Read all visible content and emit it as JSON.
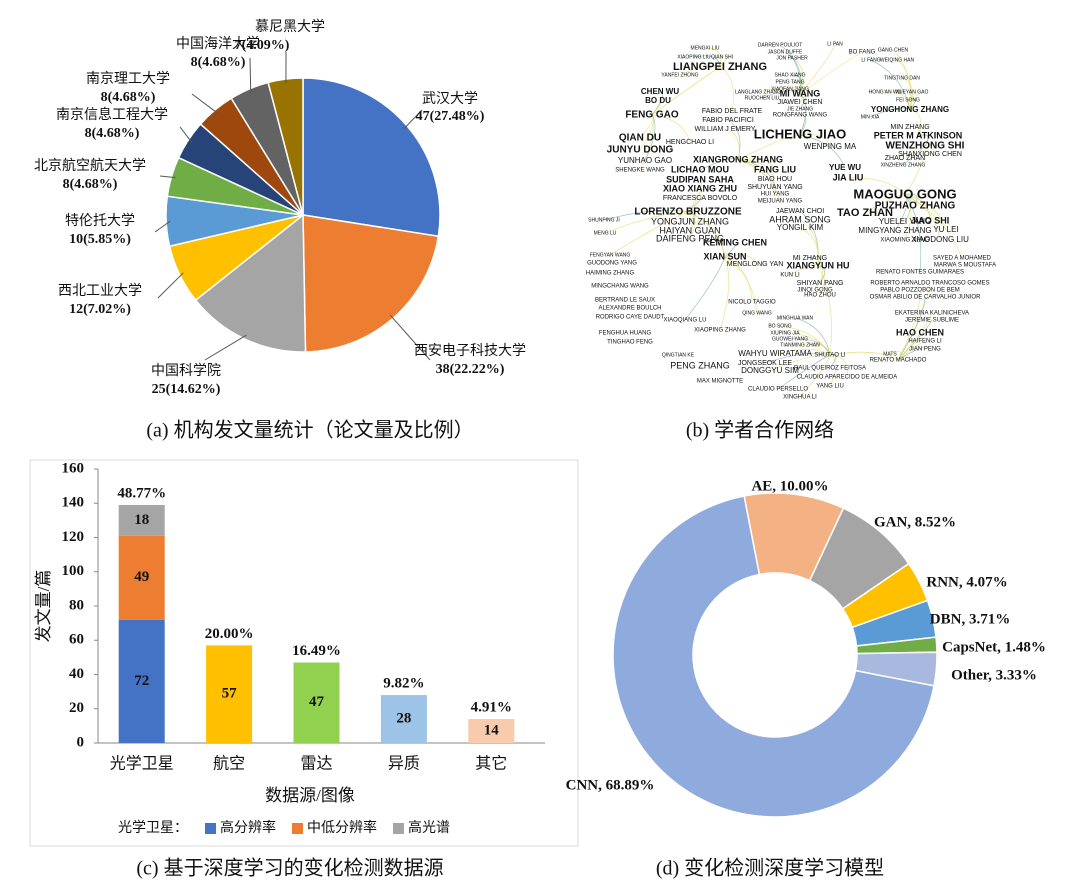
{
  "chart_data": [
    {
      "type": "pie",
      "caption": "(a)  机构发文量统计（论文量及比例）",
      "categories": [
        "武汉大学",
        "西安电子科技大学",
        "中国科学院",
        "西北工业大学",
        "特伦托大学",
        "北京航空航天大学",
        "南京信息工程大学",
        "南京理工大学",
        "中国海洋大学",
        "慕尼黑大学"
      ],
      "values": [
        47,
        38,
        25,
        12,
        10,
        8,
        8,
        8,
        8,
        7
      ],
      "value_labels": [
        "47(27.48%)",
        "38(22.22%)",
        "25(14.62%)",
        "12(7.02%)",
        "10(5.85%)",
        "8(4.68%)",
        "8(4.68%)",
        "8(4.68%)",
        "8(4.68%)",
        "7(4.09%)"
      ],
      "colors": [
        "#4472c4",
        "#ed7d31",
        "#a5a5a5",
        "#ffc000",
        "#5b9bd5",
        "#70ad47",
        "#264478",
        "#9e480e",
        "#636363",
        "#997300"
      ]
    },
    {
      "type": "network",
      "caption": "(b)  学者合作网络",
      "nodes": [
        "DARREN POULIOT",
        "LI PAN",
        "MENGXI LIU",
        "JASON DUFFE",
        "BO FANG",
        "GANG CHEN",
        "XIAOPING LIU",
        "QIAN SHI",
        "JON PASHER",
        "LI FANG",
        "WEIQING HAN",
        "LIANGPEI ZHANG",
        "SHAO XIANG",
        "PENG TANG",
        "XIAOFAN JIANG",
        "RONGFANG WANG",
        "TINGTING DAN",
        "XUEYAN GAO",
        "FEI SONG",
        "YANFEI ZHONG",
        "FENG GAO",
        "CHEN WU",
        "BO DU",
        "FABIO DEL FRATE",
        "FABIO PACIFICI",
        "WILLIAM J EMERY",
        "LANGLANG ZHANG",
        "RUOCHEN LIU",
        "MI WANG",
        "JIAWEI CHEN",
        "JIE ZHANG",
        "YONGHONG ZHANG",
        "HONG'AN WU",
        "MIN XIA",
        "MIN ZHANG",
        "PETER M ATKINSON",
        "WENZHONG SHI",
        "SHANXIONG CHEN",
        "ZHAO ZHAN",
        "XINZHENG ZHANG",
        "QIAN DU",
        "JUNYU DONG",
        "YUNHAO GAO",
        "SHENGKE WANG",
        "HENGCHAO LI",
        "LICHENG JIAO",
        "WENPING MA",
        "XIANGRONG ZHANG",
        "LICHAO MOU",
        "SUDIPAN SAHA",
        "XIAO XIANG ZHU",
        "FRANCESCA BOVOLO",
        "FANG LIU",
        "BIAO HOU",
        "SHUYUAN YANG",
        "HUI YANG",
        "MEIJUAN YANG",
        "YUE WU",
        "JIA LIU",
        "MAOGUO GONG",
        "PUZHAO ZHANG",
        "TAO ZHAN",
        "JIAO SHI",
        "YUELEI YANG",
        "YU LEI",
        "XIAODONG LIU",
        "MINGYANG ZHANG",
        "XIAOMING JIANG",
        "LORENZO BRUZZONE",
        "YONGJUN ZHANG",
        "HAIYAN GUAN",
        "DAIFENG PENG",
        "JAEWAN CHOI",
        "AHRAM SONG",
        "YONGIL KIM",
        "KEMING CHEN",
        "XIAN SUN",
        "MENGLONG YAN",
        "MI ZHANG",
        "XIANGYUN HU",
        "KUN LI",
        "SHIYAN PANG",
        "JINQI GONG",
        "HAO ZHOU",
        "RENATO FONTES GUIMARAES",
        "ROBERTO ARNALDO TRANCOSO GOMES",
        "PABLO POZZOBON DE BEM",
        "OSMAR ABILIO DE CARVALHO JUNIOR",
        "SAYED A MOHAMED",
        "MARWA S MOUSTAFA",
        "SHUNPING JI",
        "MENG LU",
        "FENGYAN WANG",
        "GUODONG YANG",
        "HAIMING ZHANG",
        "MINGCHANG WANG",
        "BERTRAND LE SAUX",
        "ALEXANDRE BOULCH",
        "RODRIGO CAYE DAUDT",
        "FENGHUA HUANG",
        "TINGHAO FENG",
        "NICOLO TAGGIO",
        "XIAOQIANG LU",
        "XIAOPING ZHANG",
        "QING WANG",
        "MINGHUA WAN",
        "BO SONG",
        "XIUPING JIA",
        "GUOWEI YANG",
        "TIANMING ZHAN",
        "EKATERINA KALINICHEVA",
        "JEREMIE SUBLIME",
        "HAO CHEN",
        "HAIFENG LI",
        "JIAN PENG",
        "MATS",
        "RENATO MACHADO",
        "QINGTIAN KE",
        "PENG ZHANG",
        "WAHYU WIRATAMA",
        "JONGSEOK LEE",
        "DONGGYU SIM",
        "SHUTAO LI",
        "RAUL QUEIROZ FEITOSA",
        "CLAUDIO APARECIDO DE ALMEIDA",
        "MAX MIGNOTTE",
        "CLAUDIO PERSELLO",
        "YANG LIU",
        "XINGHUA LI"
      ]
    },
    {
      "type": "bar",
      "caption": "(c)  基于深度学习的变化检测数据源",
      "ylabel": "发文量/篇",
      "xlabel": "数据源/图像",
      "categories": [
        "光学卫星",
        "航空",
        "雷达",
        "异质",
        "其它"
      ],
      "ylim": [
        0,
        160
      ],
      "yticks": [
        0,
        20,
        40,
        60,
        80,
        100,
        120,
        140,
        160
      ],
      "legend_title": "光学卫星：",
      "series": [
        {
          "name": "高分辨率",
          "color": "#4472c4",
          "values": [
            72,
            null,
            null,
            null,
            null
          ]
        },
        {
          "name": "中低分辨率",
          "color": "#ed7d31",
          "values": [
            49,
            null,
            null,
            null,
            null
          ]
        },
        {
          "name": "高光谱",
          "color": "#a5a5a5",
          "values": [
            18,
            null,
            null,
            null,
            null
          ]
        }
      ],
      "single": {
        "values": [
          null,
          57,
          47,
          28,
          14
        ],
        "colors": [
          null,
          "#ffc000",
          "#92d050",
          "#9dc3e6",
          "#f8cbad"
        ]
      },
      "total_labels": [
        "48.77%",
        "20.00%",
        "16.49%",
        "9.82%",
        "4.91%"
      ]
    },
    {
      "type": "donut",
      "caption": "(d)  变化检测深度学习模型",
      "categories": [
        "AE",
        "GAN",
        "RNN",
        "DBN",
        "CapsNet",
        "Other",
        "CNN"
      ],
      "values": [
        10.0,
        8.52,
        4.07,
        3.71,
        1.48,
        3.33,
        68.89
      ],
      "value_labels": [
        "AE, 10.00%",
        "GAN, 8.52%",
        "RNN, 4.07%",
        "DBN, 3.71%",
        "CapsNet, 1.48%",
        "Other, 3.33%",
        "CNN, 68.89%"
      ],
      "colors": [
        "#f4b183",
        "#a5a5a5",
        "#ffc000",
        "#5b9bd5",
        "#70ad47",
        "#a9b8de",
        "#8faadc"
      ]
    }
  ]
}
